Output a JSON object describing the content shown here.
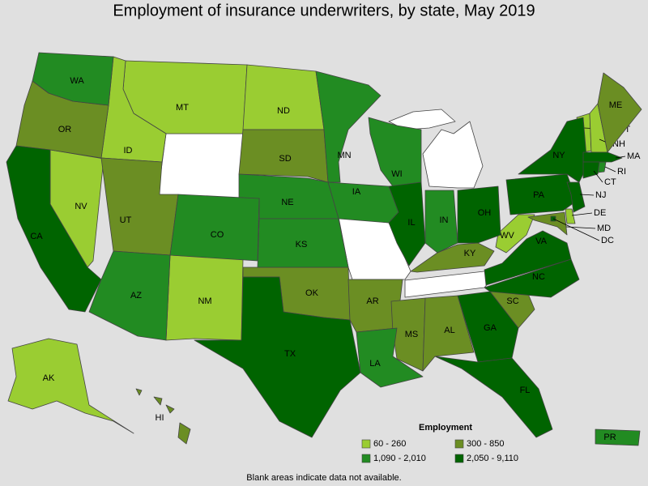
{
  "title": "Employment of insurance underwriters, by state, May 2019",
  "legend": {
    "title": "Employment",
    "classes": [
      {
        "label": "60 - 260",
        "color": "#9acd32",
        "states": [
          "MT",
          "ND",
          "ID",
          "NV",
          "NM",
          "AK",
          "WV",
          "VT",
          "NH",
          "DE"
        ]
      },
      {
        "label": "300 - 850",
        "color": "#6b8e23",
        "states": [
          "OR",
          "SD",
          "UT",
          "OK",
          "AR",
          "MS",
          "AL",
          "KY",
          "SC",
          "ME",
          "HI",
          "MD"
        ]
      },
      {
        "label": "1,090 - 2,010",
        "color": "#228b22",
        "states": [
          "WA",
          "MN",
          "WI",
          "IA",
          "NE",
          "CO",
          "KS",
          "AZ",
          "IN",
          "LA",
          "RI",
          "PR"
        ]
      },
      {
        "label": "2,050 - 9,110",
        "color": "#006400",
        "states": [
          "CA",
          "TX",
          "IL",
          "OH",
          "PA",
          "NY",
          "NC",
          "VA",
          "GA",
          "FL",
          "NJ",
          "MA",
          "CT",
          "DC"
        ]
      }
    ]
  },
  "footnote": "Blank areas indicate data not available."
}
